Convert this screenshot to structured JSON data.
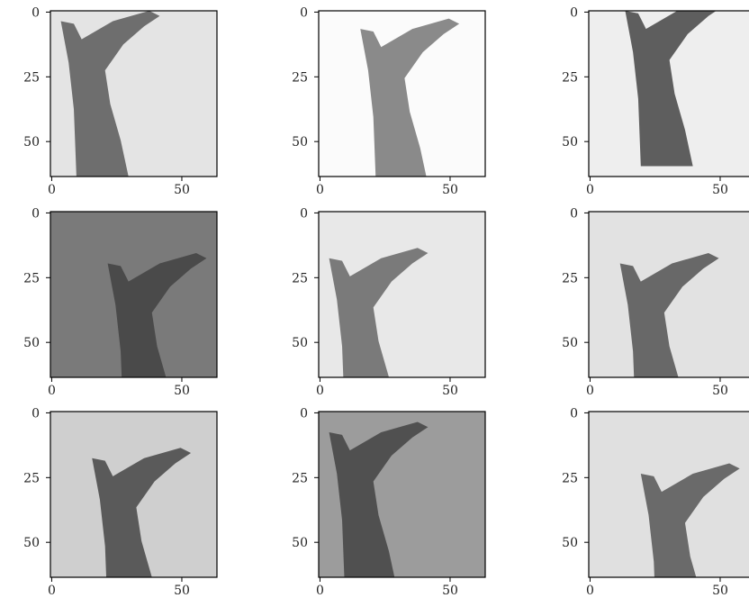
{
  "panels": [
    {
      "xticks": [
        0,
        50
      ],
      "yticks": [
        0,
        25,
        50
      ],
      "xlim": [
        -0.5,
        63.5
      ],
      "ylim": [
        63.5,
        -0.5
      ],
      "background": "#e4e4e4",
      "hand": "#6e6e6e"
    },
    {
      "xticks": [
        0,
        50
      ],
      "yticks": [
        0,
        25,
        50
      ],
      "xlim": [
        -0.5,
        63.5
      ],
      "ylim": [
        63.5,
        -0.5
      ],
      "background": "#fbfbfb",
      "hand": "#8a8a8a"
    },
    {
      "xticks": [
        0,
        50
      ],
      "yticks": [
        0,
        25,
        50
      ],
      "xlim": [
        -0.5,
        63.5
      ],
      "ylim": [
        63.5,
        -0.5
      ],
      "background": "#eeeeee",
      "hand": "#5e5e5e"
    },
    {
      "xticks": [
        0,
        50
      ],
      "yticks": [
        0,
        25,
        50
      ],
      "xlim": [
        -0.5,
        63.5
      ],
      "ylim": [
        63.5,
        -0.5
      ],
      "background": "#7a7a7a",
      "hand": "#4a4a4a"
    },
    {
      "xticks": [
        0,
        50
      ],
      "yticks": [
        0,
        25,
        50
      ],
      "xlim": [
        -0.5,
        63.5
      ],
      "ylim": [
        63.5,
        -0.5
      ],
      "background": "#e8e8e8",
      "hand": "#7a7a7a"
    },
    {
      "xticks": [
        0,
        50
      ],
      "yticks": [
        0,
        25,
        50
      ],
      "xlim": [
        -0.5,
        63.5
      ],
      "ylim": [
        63.5,
        -0.5
      ],
      "background": "#e2e2e2",
      "hand": "#686868"
    },
    {
      "xticks": [
        0,
        50
      ],
      "yticks": [
        0,
        25,
        50
      ],
      "xlim": [
        -0.5,
        63.5
      ],
      "ylim": [
        63.5,
        -0.5
      ],
      "background": "#cfcfcf",
      "hand": "#5a5a5a"
    },
    {
      "xticks": [
        0,
        50
      ],
      "yticks": [
        0,
        25,
        50
      ],
      "xlim": [
        -0.5,
        63.5
      ],
      "ylim": [
        63.5,
        -0.5
      ],
      "background": "#9c9c9c",
      "hand": "#505050"
    },
    {
      "xticks": [
        0,
        50
      ],
      "yticks": [
        0,
        25,
        50
      ],
      "xlim": [
        -0.5,
        63.5
      ],
      "ylim": [
        63.5,
        -0.5
      ],
      "background": "#e0e0e0",
      "hand": "#6a6a6a"
    }
  ]
}
